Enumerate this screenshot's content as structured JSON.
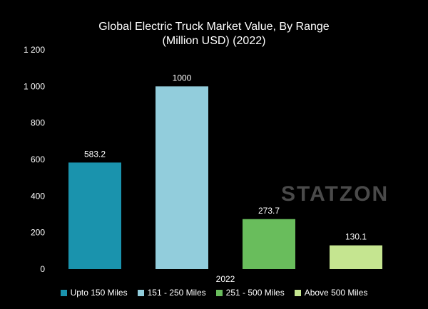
{
  "chart_data": {
    "type": "bar",
    "title_line1": "Global Electric Truck Market Value, By Range",
    "title_line2": "(Million USD) (2022)",
    "categories": [
      "2022"
    ],
    "series": [
      {
        "name": "Upto 150 Miles",
        "values": [
          583.2
        ],
        "label": "583.2",
        "color": "#1a93ad"
      },
      {
        "name": "151 - 250 Miles",
        "values": [
          1000
        ],
        "label": "1000",
        "color": "#92cddc"
      },
      {
        "name": "251 - 500 Miles",
        "values": [
          273.7
        ],
        "label": "273.7",
        "color": "#69bd5c"
      },
      {
        "name": "Above 500 Miles",
        "values": [
          130.1
        ],
        "label": "130.1",
        "color": "#c5e590"
      }
    ],
    "ylim": [
      0,
      1200
    ],
    "yticks": [
      0,
      200,
      400,
      600,
      800,
      1000,
      1200
    ],
    "ytick_labels": [
      "0",
      "200",
      "400",
      "600",
      "800",
      "1 000",
      "1 200"
    ],
    "grid": false,
    "legend_position": "bottom"
  },
  "watermark": "STATZON"
}
